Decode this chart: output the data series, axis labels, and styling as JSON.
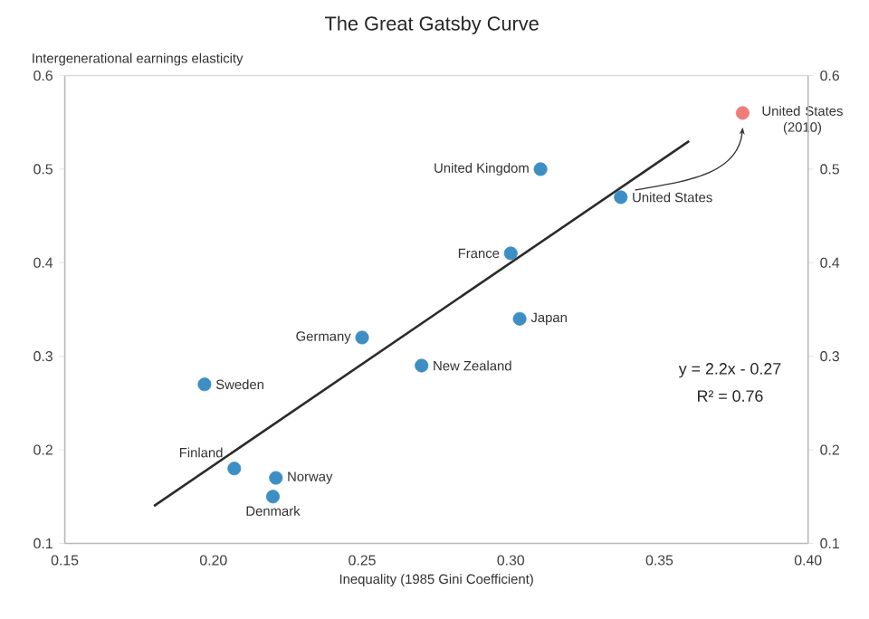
{
  "chart_data": {
    "type": "scatter",
    "title": "The Great Gatsby Curve",
    "xlabel": "Inequality (1985 Gini Coefficient)",
    "ylabel": "Intergenerational earnings elasticity",
    "xlim": [
      0.15,
      0.4
    ],
    "ylim": [
      0.1,
      0.6
    ],
    "y2lim": [
      0.1,
      0.6
    ],
    "xticks": [
      0.15,
      {
        "value": 0.2,
        "label": "0.20"
      },
      0.25,
      {
        "value": 0.3,
        "label": "0.30"
      },
      0.35,
      {
        "value": 0.4,
        "label": "0.40"
      }
    ],
    "yticks": [
      0.1,
      0.2,
      0.3,
      0.4,
      0.5,
      0.6
    ],
    "y2ticks": [
      0.1,
      0.2,
      0.3,
      0.4,
      0.5,
      0.6
    ],
    "series": [
      {
        "marker": "circle",
        "color": "#3d8ec4",
        "x": [
          0.31,
          0.337,
          0.3,
          0.303,
          0.25,
          0.27,
          0.197,
          0.207,
          0.221,
          0.22
        ],
        "values": [
          0.5,
          0.47,
          0.41,
          0.34,
          0.32,
          0.29,
          0.27,
          0.18,
          0.17,
          0.15
        ]
      },
      {
        "marker": "circle",
        "color": "#f07a7a",
        "x": [
          0.378
        ],
        "values": [
          0.56
        ]
      },
      {
        "type": "line",
        "marker": "none",
        "color": "#2b2b2b",
        "x": [
          0.18,
          0.36
        ],
        "values": [
          0.14,
          0.53
        ]
      }
    ],
    "annotations": [
      {
        "text": "United Kingdom",
        "x": 0.31,
        "y": 0.5
      },
      {
        "text": "United States",
        "x": 0.337,
        "y": 0.47
      },
      {
        "text": "France",
        "x": 0.3,
        "y": 0.41
      },
      {
        "text": "Japan",
        "x": 0.303,
        "y": 0.34
      },
      {
        "text": "Germany",
        "x": 0.25,
        "y": 0.32
      },
      {
        "text": "New Zealand",
        "x": 0.27,
        "y": 0.29
      },
      {
        "text": "Sweden",
        "x": 0.197,
        "y": 0.27
      },
      {
        "text": "Finland",
        "x": 0.207,
        "y": 0.18
      },
      {
        "text": "Norway",
        "x": 0.221,
        "y": 0.17
      },
      {
        "text": "Denmark",
        "x": 0.22,
        "y": 0.15
      },
      {
        "text": "United States (2010)",
        "x": 0.378,
        "y": 0.56
      },
      "y = 2.2x - 0.27",
      "R² = 0.76"
    ]
  }
}
